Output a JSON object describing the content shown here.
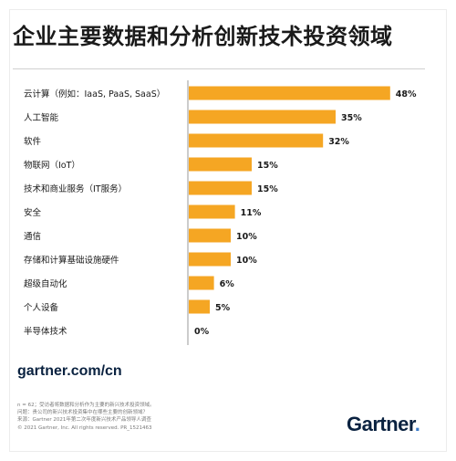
{
  "title": "企业主要数据和分析创新技术投资领域",
  "chart_data": {
    "type": "bar",
    "orientation": "horizontal",
    "categories": [
      "云计算（例如：IaaS, PaaS, SaaS）",
      "人工智能",
      "软件",
      "物联网（IoT）",
      "技术和商业服务（IT服务）",
      "安全",
      "通信",
      "存储和计算基础设施硬件",
      "超级自动化",
      "个人设备",
      "半导体技术"
    ],
    "values": [
      48,
      35,
      32,
      15,
      15,
      11,
      10,
      10,
      6,
      5,
      0
    ],
    "value_labels": [
      "48%",
      "35%",
      "32%",
      "15%",
      "15%",
      "11%",
      "10%",
      "10%",
      "6%",
      "5%",
      "0%"
    ],
    "xlim": [
      0,
      50
    ],
    "bar_color": "#f5a623",
    "grid": false
  },
  "footer": {
    "url": "gartner.com/cn",
    "note_lines": [
      "n = 62；受访者将数据和分析作为主要的新兴技术投资领域。",
      "问题：贵公司的新兴技术投资集中在哪些主要的创新领域？",
      "来源：Gartner 2021年第二次年度新兴技术产品领导人调查",
      "© 2021 Gartner, Inc. All rights reserved. PR_1521463"
    ],
    "logo_text": "Gartner",
    "logo_dot": "."
  }
}
